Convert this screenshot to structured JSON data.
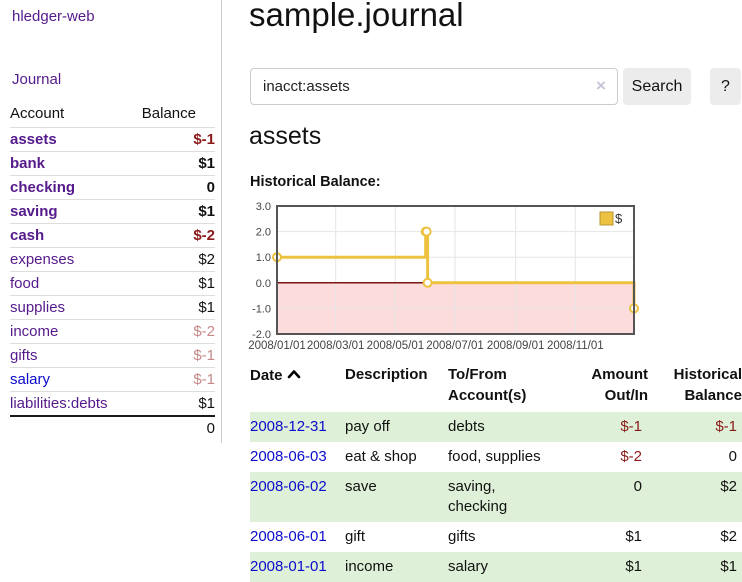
{
  "colors": {
    "link_purple": "#551a8b",
    "link_blue": "#0b0bcc",
    "negative_strong": "#8b1a1a",
    "negative_soft": "#c68989",
    "row_green": "#dff0d8",
    "chart_line": "#edc240",
    "chart_negative_fill": "#fcdcdc",
    "chart_zero_line": "#7a1515",
    "chart_border": "#555555",
    "grid_line": "#e5e5e5",
    "button_bg": "#ececec",
    "border_light": "#dddddd"
  },
  "app": {
    "brand": "hledger-web",
    "nav_journal": "Journal"
  },
  "sidebar": {
    "headers": {
      "account": "Account",
      "balance": "Balance"
    },
    "rows": [
      {
        "account": "assets",
        "level": 1,
        "bold": true,
        "balance": "$-1",
        "balance_class": "neg-strong"
      },
      {
        "account": "bank",
        "level": 2,
        "bold": true,
        "balance": "$1",
        "balance_class": ""
      },
      {
        "account": "checking",
        "level": 3,
        "bold": true,
        "balance": "0",
        "balance_class": ""
      },
      {
        "account": "saving",
        "level": 3,
        "bold": true,
        "balance": "$1",
        "balance_class": ""
      },
      {
        "account": "cash",
        "level": 2,
        "bold": true,
        "balance": "$-2",
        "balance_class": "neg-strong"
      },
      {
        "account": "expenses",
        "level": 1,
        "bold": false,
        "balance": "$2",
        "balance_class": ""
      },
      {
        "account": "food",
        "level": 2,
        "bold": false,
        "balance": "$1",
        "balance_class": ""
      },
      {
        "account": "supplies",
        "level": 2,
        "bold": false,
        "balance": "$1",
        "balance_class": ""
      },
      {
        "account": "income",
        "level": 1,
        "bold": false,
        "balance": "$-2",
        "balance_class": "neg-soft"
      },
      {
        "account": "gifts",
        "level": 2,
        "bold": false,
        "balance": "$-1",
        "balance_class": "neg-soft"
      },
      {
        "account": "salary",
        "level": 2,
        "bold": false,
        "blue": true,
        "balance": "$-1",
        "balance_class": "neg-soft"
      },
      {
        "account": "liabilities:debts",
        "level": 1,
        "bold": false,
        "balance": "$1",
        "balance_class": ""
      }
    ],
    "total": "0"
  },
  "main": {
    "title": "sample.journal",
    "search": {
      "value": "inacct:assets",
      "clear_icon": "×",
      "search_label": "Search",
      "help_label": "?"
    },
    "account_heading": "assets",
    "chart_title": "Historical Balance:"
  },
  "chart_data": {
    "type": "line",
    "step": true,
    "title": "Historical Balance",
    "series": [
      {
        "name": "$",
        "points": [
          [
            "2008-01-01",
            1
          ],
          [
            "2008-06-01",
            2
          ],
          [
            "2008-06-02",
            2
          ],
          [
            "2008-06-03",
            0
          ],
          [
            "2008-12-31",
            -1
          ]
        ]
      }
    ],
    "x_range": [
      "2008-01-01",
      "2008-12-31"
    ],
    "ylim": [
      -2,
      3
    ],
    "y_ticks": [
      3,
      2,
      1,
      0,
      -1,
      -2
    ],
    "x_tick_labels": [
      "2008/01/01",
      "2008/03/01",
      "2008/05/01",
      "2008/07/01",
      "2008/09/01",
      "2008/11/01"
    ],
    "grid": true,
    "legend_position": "top-right",
    "negative_region_below": 0
  },
  "register": {
    "headers": [
      "Date",
      "Description",
      "To/From Account(s)",
      "Amount Out/In",
      "Historical Balance"
    ],
    "rows": [
      {
        "date": "2008-12-31",
        "description": "pay off",
        "accounts": "debts",
        "amount": "$-1",
        "amount_negative": true,
        "balance": "$-1",
        "balance_negative": true
      },
      {
        "date": "2008-06-03",
        "description": "eat & shop",
        "accounts": "food, supplies",
        "amount": "$-2",
        "amount_negative": true,
        "balance": "0",
        "balance_negative": false
      },
      {
        "date": "2008-06-02",
        "description": "save",
        "accounts": "saving, checking",
        "amount": "0",
        "amount_negative": false,
        "balance": "$2",
        "balance_negative": false
      },
      {
        "date": "2008-06-01",
        "description": "gift",
        "accounts": "gifts",
        "amount": "$1",
        "amount_negative": false,
        "balance": "$2",
        "balance_negative": false
      },
      {
        "date": "2008-01-01",
        "description": "income",
        "accounts": "salary",
        "amount": "$1",
        "amount_negative": false,
        "balance": "$1",
        "balance_negative": false
      }
    ]
  }
}
